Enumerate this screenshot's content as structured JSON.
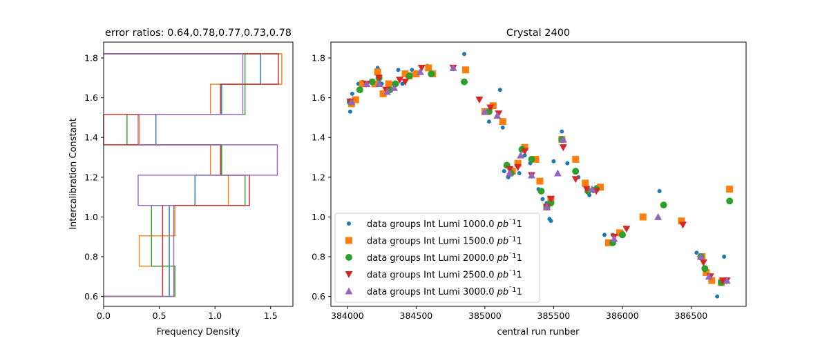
{
  "chart_data": [
    {
      "type": "histogram",
      "orientation": "horizontal",
      "histtype": "step",
      "title": "error ratios: 0.64,0.78,0.77,0.73,0.78",
      "xlabel": "Frequency Density",
      "ylabel": "Intercalibration Constant",
      "xlim": [
        0.0,
        1.7
      ],
      "ylim": [
        0.55,
        1.88
      ],
      "xticks": [
        "0.0",
        "0.5",
        "1.0",
        "1.5"
      ],
      "xtick_values": [
        0.0,
        0.5,
        1.0,
        1.5
      ],
      "yticks": [
        "0.6",
        "0.8",
        "1.0",
        "1.2",
        "1.4",
        "1.6",
        "1.8"
      ],
      "ytick_values": [
        0.6,
        0.8,
        1.0,
        1.2,
        1.4,
        1.6,
        1.8
      ],
      "bin_edges": [
        0.6,
        0.752,
        0.905,
        1.058,
        1.21,
        1.363,
        1.516,
        1.668,
        1.821
      ],
      "series": [
        {
          "name": "data groups Int Lumi 1000.0 pb^-1",
          "color": "#1f77b4",
          "densities": [
            0.59,
            0.59,
            0.59,
            0.82,
            1.06,
            0.47,
            1.06,
            1.41
          ]
        },
        {
          "name": "data groups Int Lumi 1500.0 pb^-1",
          "color": "#ff7f0e",
          "densities": [
            0.64,
            0.32,
            0.64,
            1.12,
            0.96,
            0.32,
            0.96,
            1.6
          ]
        },
        {
          "name": "data groups Int Lumi 2000.0 pb^-1",
          "color": "#2ca02c",
          "densities": [
            0.64,
            0.43,
            0.43,
            1.27,
            1.06,
            0.21,
            1.27,
            1.27
          ]
        },
        {
          "name": "data groups Int Lumi 2500.0 pb^-1",
          "color": "#d62728",
          "densities": [
            0.53,
            0.53,
            0.53,
            1.31,
            1.05,
            0.0,
            1.05,
            1.57
          ]
        },
        {
          "name": "data groups Int Lumi 3000.0 pb^-1",
          "color": "#9467bd",
          "densities": [
            0.63,
            0.63,
            0.63,
            0.31,
            1.56,
            0.31,
            1.25,
            1.25
          ]
        }
      ]
    },
    {
      "type": "scatter",
      "title": "Crystal 2400",
      "xlabel": "central run runber",
      "ylabel": "",
      "xlim": [
        383880,
        386900
      ],
      "ylim": [
        0.55,
        1.88
      ],
      "xticks": [
        "384000",
        "384500",
        "385000",
        "385500",
        "386000",
        "386500"
      ],
      "xtick_values": [
        384000,
        384500,
        385000,
        385500,
        386000,
        386500
      ],
      "yticks": [
        "0.6",
        "0.8",
        "1.0",
        "1.2",
        "1.4",
        "1.6",
        "1.8"
      ],
      "ytick_values": [
        0.6,
        0.8,
        1.0,
        1.2,
        1.4,
        1.6,
        1.8
      ],
      "legend": {
        "placement": "lower-left"
      },
      "series": [
        {
          "name": "data groups Int Lumi 1000.0",
          "unit_suffix": "pb",
          "unit_exp": "−1",
          "color": "#1f77b4",
          "marker": "small-circle",
          "points": [
            [
              384020,
              1.53
            ],
            [
              384035,
              1.62
            ],
            [
              384080,
              1.67
            ],
            [
              384110,
              1.68
            ],
            [
              384220,
              1.75
            ],
            [
              384230,
              1.68
            ],
            [
              384250,
              1.67
            ],
            [
              384330,
              1.67
            ],
            [
              384370,
              1.74
            ],
            [
              384400,
              1.67
            ],
            [
              384430,
              1.71
            ],
            [
              384470,
              1.74
            ],
            [
              384490,
              1.72
            ],
            [
              384580,
              1.76
            ],
            [
              384850,
              1.82
            ],
            [
              385000,
              1.53
            ],
            [
              385030,
              1.48
            ],
            [
              385050,
              1.55
            ],
            [
              385110,
              1.64
            ],
            [
              385130,
              1.45
            ],
            [
              385140,
              1.23
            ],
            [
              385170,
              1.2
            ],
            [
              385200,
              1.24
            ],
            [
              385250,
              1.22
            ],
            [
              385290,
              1.31
            ],
            [
              385330,
              1.27
            ],
            [
              385390,
              1.14
            ],
            [
              385420,
              1.09
            ],
            [
              385450,
              1.07
            ],
            [
              385470,
              0.99
            ],
            [
              385480,
              0.98
            ],
            [
              385500,
              1.28
            ],
            [
              385560,
              1.43
            ],
            [
              385600,
              1.27
            ],
            [
              385680,
              1.2
            ],
            [
              385760,
              1.11
            ],
            [
              385790,
              1.13
            ],
            [
              385810,
              1.15
            ],
            [
              385870,
              0.91
            ],
            [
              385930,
              0.91
            ],
            [
              386000,
              0.92
            ],
            [
              386270,
              1.13
            ],
            [
              386540,
              0.82
            ],
            [
              386570,
              0.8
            ],
            [
              386600,
              0.73
            ],
            [
              386690,
              0.6
            ],
            [
              386740,
              0.8
            ]
          ]
        },
        {
          "name": "data groups Int Lumi 1500.0",
          "unit_suffix": "pb",
          "unit_exp": "−1",
          "color": "#ff7f0e",
          "marker": "square",
          "points": [
            [
              384030,
              1.57
            ],
            [
              384060,
              1.59
            ],
            [
              384110,
              1.67
            ],
            [
              384200,
              1.67
            ],
            [
              384220,
              1.73
            ],
            [
              384260,
              1.62
            ],
            [
              384300,
              1.67
            ],
            [
              384420,
              1.72
            ],
            [
              384450,
              1.71
            ],
            [
              384500,
              1.72
            ],
            [
              384590,
              1.75
            ],
            [
              384620,
              1.72
            ],
            [
              384860,
              1.74
            ],
            [
              385000,
              1.53
            ],
            [
              385060,
              1.56
            ],
            [
              385130,
              1.48
            ],
            [
              385200,
              1.23
            ],
            [
              385240,
              1.27
            ],
            [
              385290,
              1.35
            ],
            [
              385370,
              1.29
            ],
            [
              385400,
              1.18
            ],
            [
              385450,
              1.05
            ],
            [
              385480,
              1.09
            ],
            [
              385560,
              1.39
            ],
            [
              385660,
              1.29
            ],
            [
              385730,
              1.17
            ],
            [
              385840,
              1.15
            ],
            [
              385900,
              0.87
            ],
            [
              385980,
              0.92
            ],
            [
              386150,
              1.0
            ],
            [
              386430,
              0.98
            ],
            [
              386580,
              0.8
            ],
            [
              386610,
              0.72
            ],
            [
              386650,
              0.68
            ],
            [
              386720,
              0.67
            ],
            [
              386780,
              1.14
            ]
          ]
        },
        {
          "name": "data groups Int Lumi 2000.0",
          "unit_suffix": "pb",
          "unit_exp": "−1",
          "color": "#2ca02c",
          "marker": "circle",
          "points": [
            [
              384020,
              1.58
            ],
            [
              384090,
              1.64
            ],
            [
              384180,
              1.68
            ],
            [
              384230,
              1.7
            ],
            [
              384310,
              1.64
            ],
            [
              384350,
              1.67
            ],
            [
              384450,
              1.71
            ],
            [
              384610,
              1.72
            ],
            [
              384850,
              1.68
            ],
            [
              385030,
              1.53
            ],
            [
              385160,
              1.26
            ],
            [
              385190,
              1.22
            ],
            [
              385270,
              1.34
            ],
            [
              385340,
              1.29
            ],
            [
              385410,
              1.13
            ],
            [
              385450,
              1.05
            ],
            [
              385480,
              1.07
            ],
            [
              385560,
              1.39
            ],
            [
              385660,
              1.23
            ],
            [
              385750,
              1.13
            ],
            [
              385810,
              1.14
            ],
            [
              385930,
              0.87
            ],
            [
              386000,
              0.91
            ],
            [
              386300,
              1.06
            ],
            [
              386570,
              0.8
            ],
            [
              386600,
              0.74
            ],
            [
              386720,
              0.67
            ],
            [
              386780,
              1.08
            ]
          ]
        },
        {
          "name": "data groups Int Lumi 2500.0",
          "unit_suffix": "pb",
          "unit_exp": "−1",
          "color": "#d62728",
          "marker": "triangle-down",
          "points": [
            [
              384020,
              1.58
            ],
            [
              384140,
              1.67
            ],
            [
              384230,
              1.7
            ],
            [
              384280,
              1.64
            ],
            [
              384380,
              1.69
            ],
            [
              384420,
              1.68
            ],
            [
              384540,
              1.75
            ],
            [
              384770,
              1.75
            ],
            [
              384960,
              1.59
            ],
            [
              385040,
              1.55
            ],
            [
              385100,
              1.52
            ],
            [
              385180,
              1.24
            ],
            [
              385240,
              1.25
            ],
            [
              385290,
              1.33
            ],
            [
              385340,
              1.21
            ],
            [
              385450,
              1.05
            ],
            [
              385480,
              1.09
            ],
            [
              385570,
              1.35
            ],
            [
              385660,
              1.19
            ],
            [
              385740,
              1.14
            ],
            [
              385810,
              1.13
            ],
            [
              385940,
              0.9
            ],
            [
              386030,
              0.94
            ],
            [
              386440,
              0.96
            ],
            [
              386590,
              0.77
            ],
            [
              386640,
              0.7
            ],
            [
              386730,
              0.68
            ],
            [
              386760,
              0.68
            ]
          ]
        },
        {
          "name": "data groups Int Lumi 3000.0",
          "unit_suffix": "pb",
          "unit_exp": "−1",
          "color": "#9467bd",
          "marker": "triangle-up",
          "points": [
            [
              384030,
              1.58
            ],
            [
              384140,
              1.67
            ],
            [
              384230,
              1.67
            ],
            [
              384290,
              1.63
            ],
            [
              384340,
              1.65
            ],
            [
              384530,
              1.73
            ],
            [
              384770,
              1.75
            ],
            [
              385000,
              1.53
            ],
            [
              385090,
              1.51
            ],
            [
              385180,
              1.22
            ],
            [
              385260,
              1.31
            ],
            [
              385340,
              1.21
            ],
            [
              385450,
              1.05
            ],
            [
              385530,
              1.22
            ],
            [
              385570,
              1.39
            ],
            [
              385780,
              1.14
            ],
            [
              385940,
              0.89
            ],
            [
              386260,
              1.0
            ],
            [
              386570,
              0.8
            ],
            [
              386630,
              0.7
            ],
            [
              386760,
              0.68
            ]
          ]
        }
      ]
    }
  ]
}
